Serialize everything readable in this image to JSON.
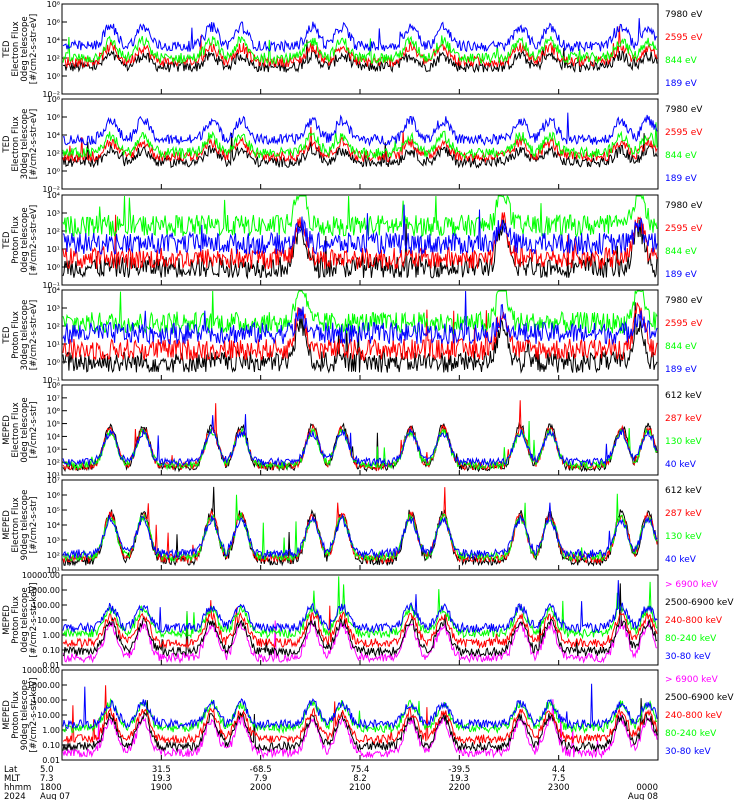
{
  "colors": {
    "blue": "#0000ff",
    "red": "#ff0000",
    "green": "#00ff00",
    "black": "#000000",
    "magenta": "#ff00ff"
  },
  "chart_data": [
    {
      "type": "line",
      "ylabel": [
        "TED",
        "Electron Flux",
        "0deg telescope",
        "[#/cm2-s-str-eV]"
      ],
      "y_ticklabels": [
        "10⁻²",
        "10⁰",
        "10²",
        "10⁴",
        "10⁶",
        "10⁸"
      ],
      "ylim": [
        "1e-2",
        "1e8"
      ],
      "series": [
        {
          "name": "7980 eV",
          "color": "black",
          "baseline": 10
        },
        {
          "name": "2595 eV",
          "color": "red",
          "baseline": 40
        },
        {
          "name": "844 eV",
          "color": "green",
          "baseline": 100
        },
        {
          "name": "189 eV",
          "color": "blue",
          "baseline": 2000
        }
      ]
    },
    {
      "type": "line",
      "ylabel": [
        "TED",
        "Electron Flux",
        "30deg telescope",
        "[#/cm2-s-str-eV]"
      ],
      "y_ticklabels": [
        "10⁻²",
        "10⁰",
        "10²",
        "10⁴",
        "10⁶",
        "10⁸"
      ],
      "ylim": [
        "1e-2",
        "1e8"
      ],
      "series": [
        {
          "name": "7980 eV",
          "color": "black",
          "baseline": 10
        },
        {
          "name": "2595 eV",
          "color": "red",
          "baseline": 40
        },
        {
          "name": "844 eV",
          "color": "green",
          "baseline": 100
        },
        {
          "name": "189 eV",
          "color": "blue",
          "baseline": 3000
        }
      ]
    },
    {
      "type": "line",
      "ylabel": [
        "TED",
        "Proton Flux",
        "0deg telescope",
        "[#/cm2-s-str-eV]"
      ],
      "y_ticklabels": [
        "10⁻¹",
        "10⁰",
        "10¹",
        "10²",
        "10³",
        "10⁴"
      ],
      "ylim": [
        "1e-1",
        "1e4"
      ],
      "series": [
        {
          "name": "7980 eV",
          "color": "black",
          "baseline": 1
        },
        {
          "name": "2595 eV",
          "color": "red",
          "baseline": 3
        },
        {
          "name": "844 eV",
          "color": "green",
          "baseline": 200
        },
        {
          "name": "189 eV",
          "color": "blue",
          "baseline": 20
        }
      ]
    },
    {
      "type": "line",
      "ylabel": [
        "TED",
        "Proton Flux",
        "30deg telescope",
        "[#/cm2-s-str-eV]"
      ],
      "y_ticklabels": [
        "10⁻¹",
        "10⁰",
        "10¹",
        "10²",
        "10³",
        "10⁴"
      ],
      "ylim": [
        "1e-1",
        "1e4"
      ],
      "series": [
        {
          "name": "7980 eV",
          "color": "black",
          "baseline": 1
        },
        {
          "name": "2595 eV",
          "color": "red",
          "baseline": 5
        },
        {
          "name": "844 eV",
          "color": "green",
          "baseline": 150
        },
        {
          "name": "189 eV",
          "color": "blue",
          "baseline": 40
        }
      ]
    },
    {
      "type": "line",
      "ylabel": [
        "MEPED",
        "Electron Flux",
        "0deg telescope",
        "[#/cm2-s-str]"
      ],
      "y_ticklabels": [
        "10¹",
        "10²",
        "10³",
        "10⁴",
        "10⁵",
        "10⁶",
        "10⁷",
        "10⁸"
      ],
      "ylim": [
        "1e1",
        "1e8"
      ],
      "series": [
        {
          "name": "612 keV",
          "color": "black",
          "baseline": 40
        },
        {
          "name": "287 keV",
          "color": "red",
          "baseline": 50
        },
        {
          "name": "130 keV",
          "color": "green",
          "baseline": 60
        },
        {
          "name": "40 keV",
          "color": "blue",
          "baseline": 100
        }
      ]
    },
    {
      "type": "line",
      "ylabel": [
        "MEPED",
        "Electron Flux",
        "90deg telescope",
        "[#/cm2-s-str]"
      ],
      "y_ticklabels": [
        "10¹",
        "10²",
        "10³",
        "10⁴",
        "10⁵",
        "10⁶",
        "10⁷"
      ],
      "ylim": [
        "1e1",
        "1e7"
      ],
      "series": [
        {
          "name": "612 keV",
          "color": "black",
          "baseline": 40
        },
        {
          "name": "287 keV",
          "color": "red",
          "baseline": 60
        },
        {
          "name": "130 keV",
          "color": "green",
          "baseline": 80
        },
        {
          "name": "40 keV",
          "color": "blue",
          "baseline": 120
        }
      ]
    },
    {
      "type": "line",
      "ylabel": [
        "MEPED",
        "Proton Flux",
        "0deg telescope",
        "[#/cm2-s-str-keV]"
      ],
      "y_ticklabels": [
        "0.01",
        "0.10",
        "1.00",
        "10.00",
        "100.00",
        "1000.00",
        "10000.00"
      ],
      "ylim": [
        "1e-2",
        "1e4"
      ],
      "series": [
        {
          "name": "> 6900 keV",
          "color": "magenta",
          "baseline": 0.03
        },
        {
          "name": "2500-6900 keV",
          "color": "black",
          "baseline": 0.08
        },
        {
          "name": "240-800 keV",
          "color": "red",
          "baseline": 0.3
        },
        {
          "name": "80-240 keV",
          "color": "green",
          "baseline": 1.3
        },
        {
          "name": "30-80 keV",
          "color": "blue",
          "baseline": 3
        }
      ]
    },
    {
      "type": "line",
      "ylabel": [
        "MEPED",
        "Proton Flux",
        "90deg telescope",
        "[#/cm2-s-str-keV]"
      ],
      "y_ticklabels": [
        "0.01",
        "0.10",
        "1.00",
        "10.00",
        "100.00",
        "1000.00",
        "10000.00"
      ],
      "ylim": [
        "1e-2",
        "1e4"
      ],
      "series": [
        {
          "name": "> 6900 keV",
          "color": "magenta",
          "baseline": 0.03
        },
        {
          "name": "2500-6900 keV",
          "color": "black",
          "baseline": 0.08
        },
        {
          "name": "240-800 keV",
          "color": "red",
          "baseline": 0.25
        },
        {
          "name": "80-240 keV",
          "color": "green",
          "baseline": 1.4
        },
        {
          "name": "30-80 keV",
          "color": "blue",
          "baseline": 2.5
        }
      ]
    }
  ],
  "x_axis": {
    "row_labels": [
      "Lat",
      "MLT",
      "hhmm",
      "2024"
    ],
    "columns": [
      {
        "lat": "5.0",
        "mlt": "7.3",
        "hhmm": "1800",
        "date": "Aug 07"
      },
      {
        "lat": "31.5",
        "mlt": "19.3",
        "hhmm": "1900",
        "date": ""
      },
      {
        "lat": "-68.5",
        "mlt": "7.9",
        "hhmm": "2000",
        "date": ""
      },
      {
        "lat": "75.4",
        "mlt": "8.2",
        "hhmm": "2100",
        "date": ""
      },
      {
        "lat": "-39.5",
        "mlt": "19.3",
        "hhmm": "2200",
        "date": ""
      },
      {
        "lat": "4.4",
        "mlt": "7.5",
        "hhmm": "2300",
        "date": ""
      },
      {
        "lat": "",
        "mlt": "",
        "hhmm": "0000",
        "date": "Aug 08"
      }
    ]
  }
}
